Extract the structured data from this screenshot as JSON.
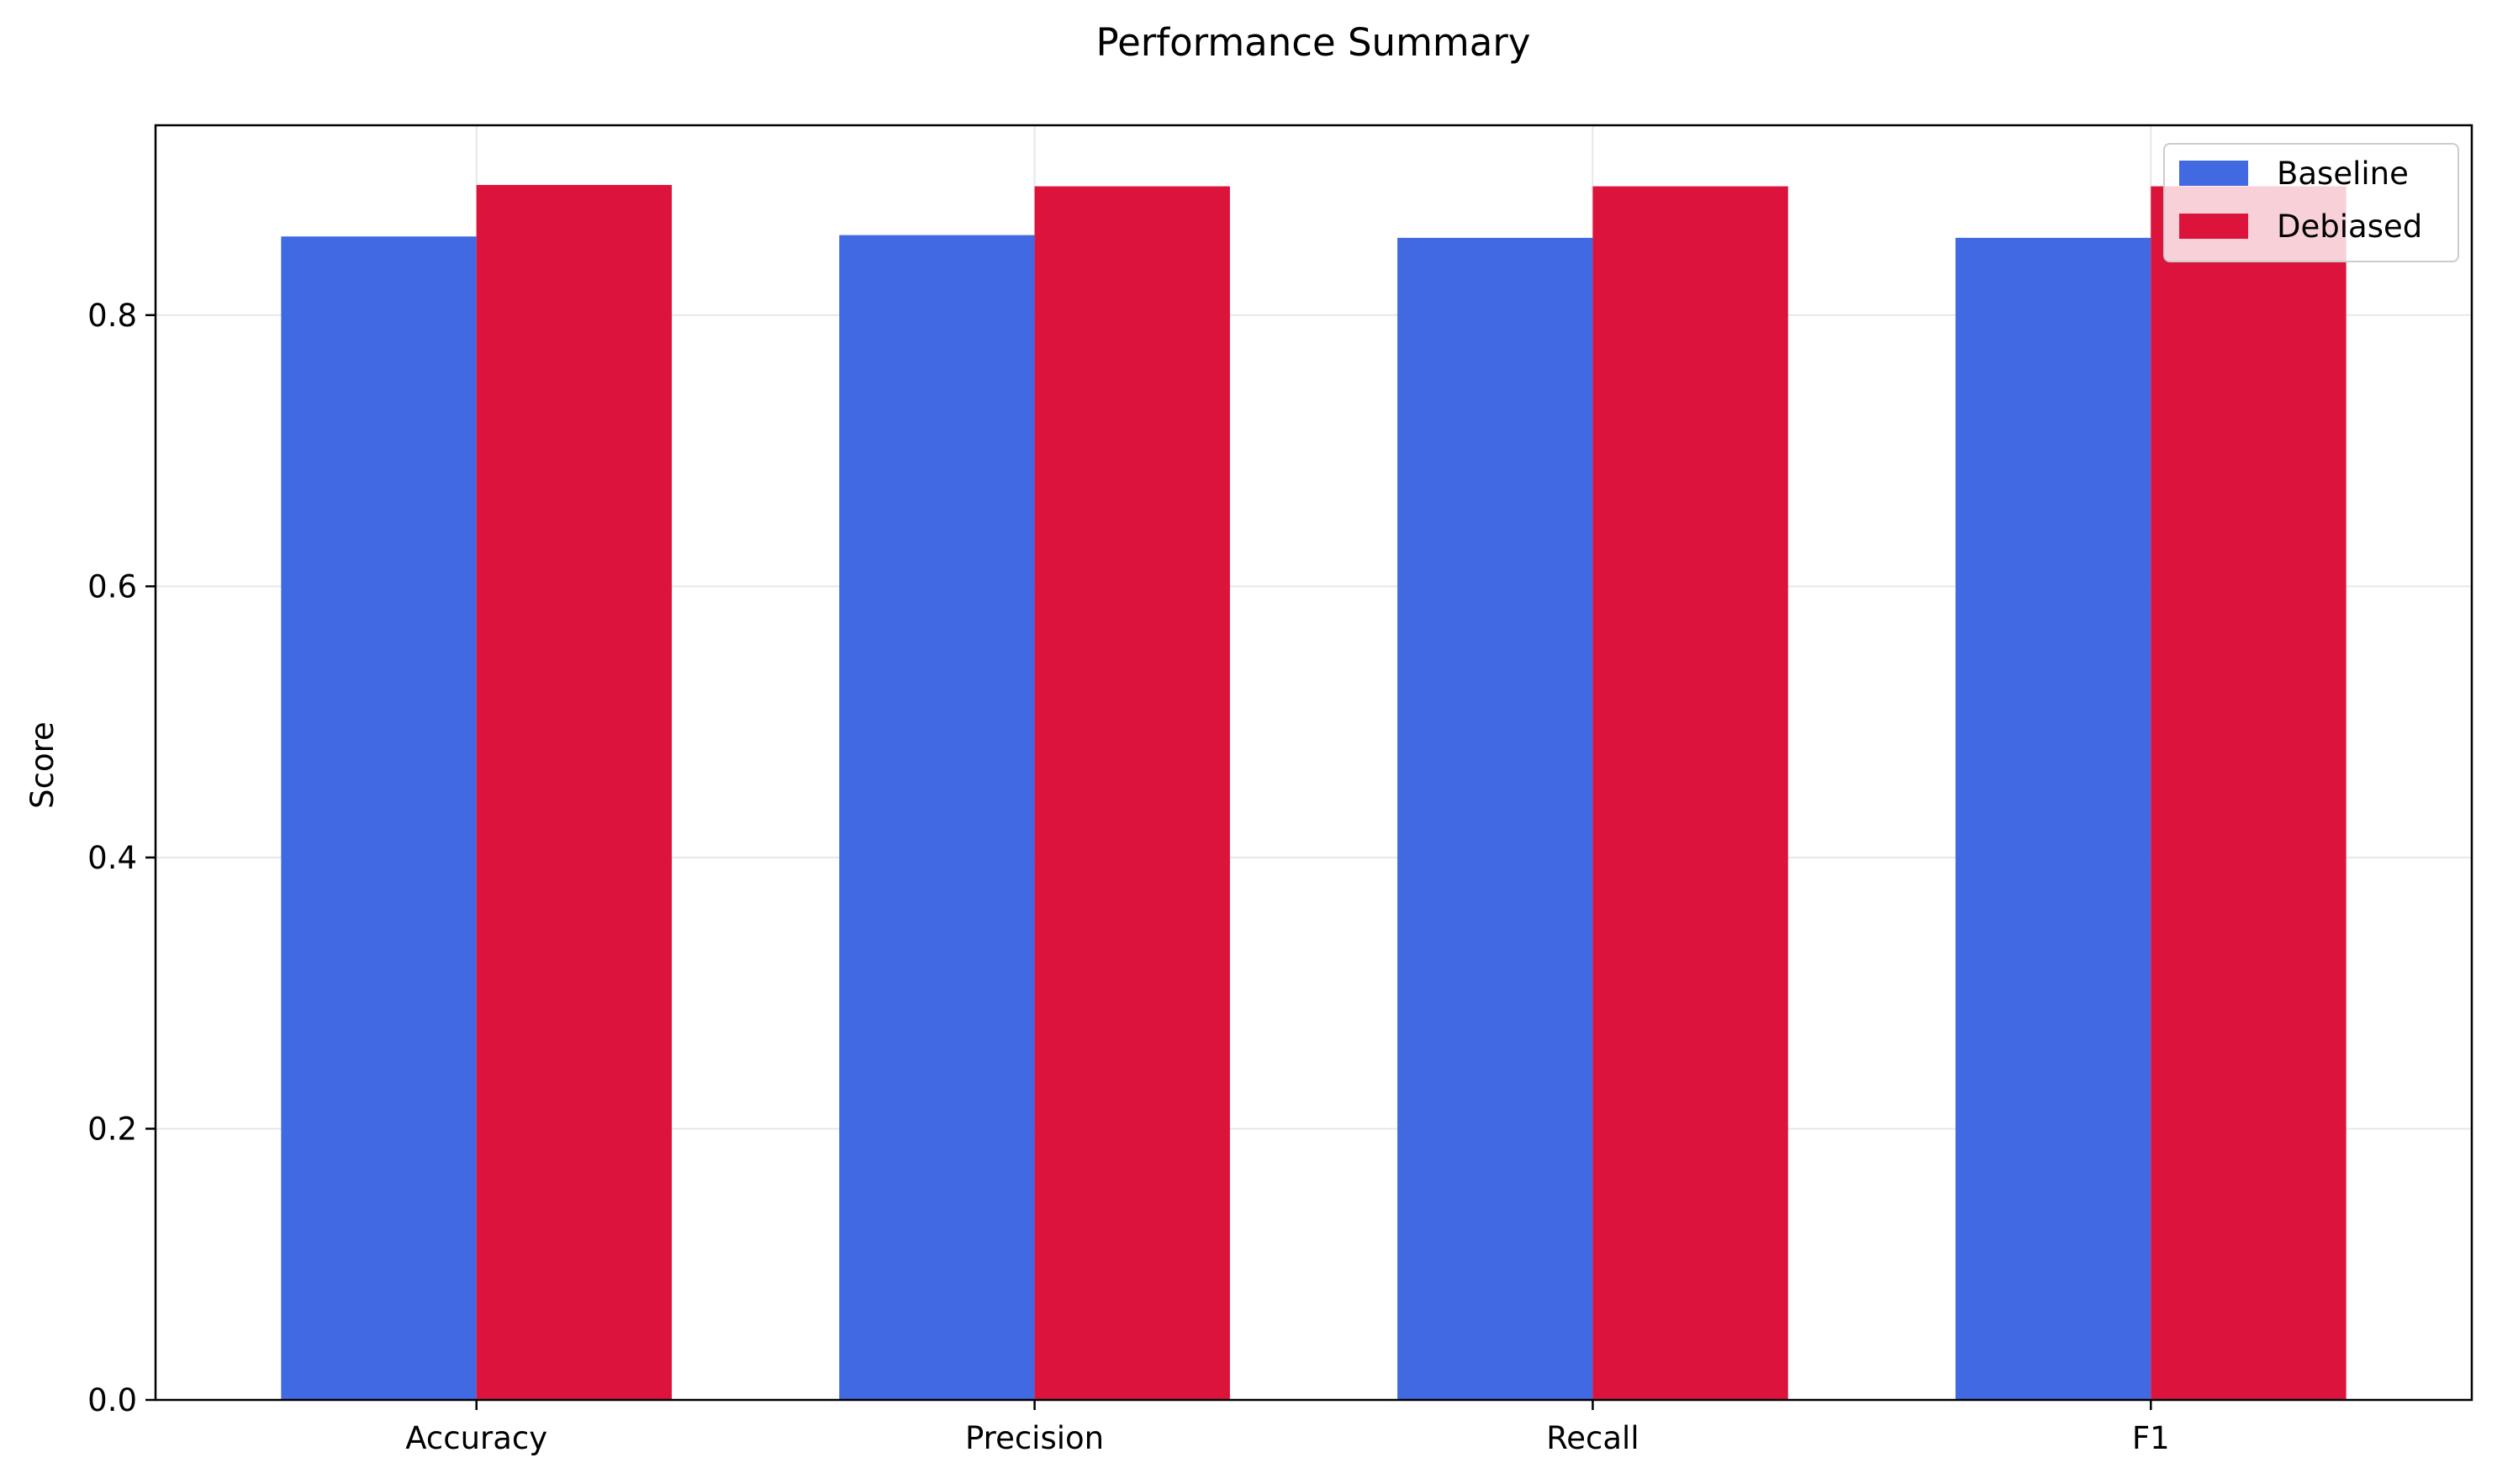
{
  "chart_data": {
    "type": "bar",
    "title": "Performance Summary",
    "xlabel": "",
    "ylabel": "Score",
    "categories": [
      "Accuracy",
      "Precision",
      "Recall",
      "F1"
    ],
    "series": [
      {
        "name": "Baseline",
        "values": [
          0.858,
          0.859,
          0.857,
          0.857
        ],
        "color": "#4169e1"
      },
      {
        "name": "Debiased",
        "values": [
          0.896,
          0.895,
          0.895,
          0.895
        ],
        "color": "#dc143c"
      }
    ],
    "ylim": [
      0,
      0.94
    ],
    "yticks": [
      0.0,
      0.2,
      0.4,
      0.6,
      0.8
    ],
    "ytick_labels": [
      "0.0",
      "0.2",
      "0.4",
      "0.6",
      "0.8"
    ],
    "grid": true,
    "legend_position": "top-right"
  }
}
